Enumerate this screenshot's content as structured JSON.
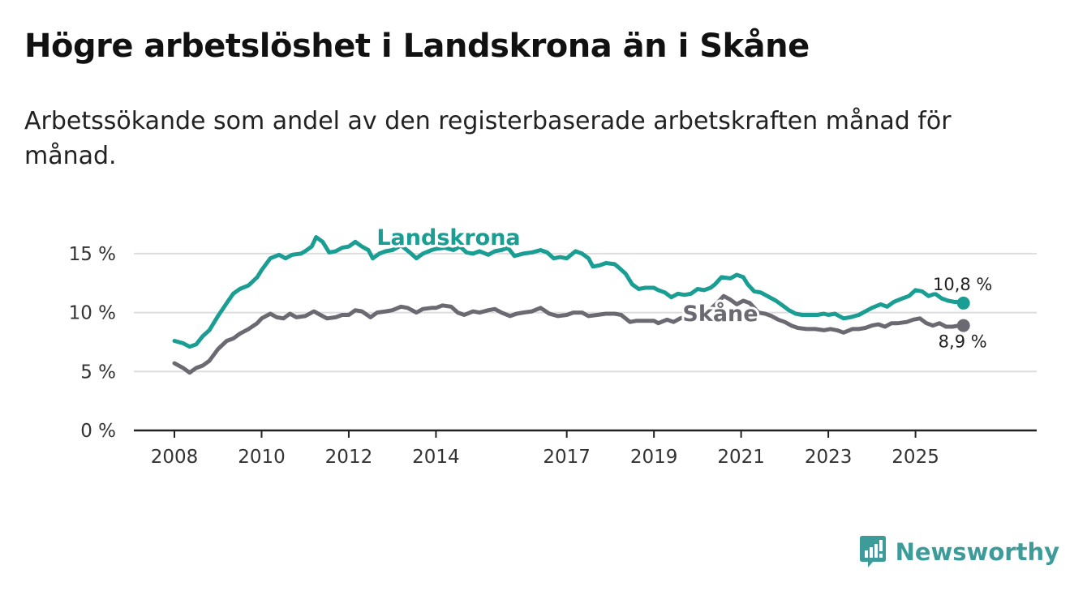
{
  "title": "Högre arbetslöshet i Landskrona än i Skåne",
  "subtitle": "Arbetssökande som andel av den registerbaserade arbetskraften månad för månad.",
  "brand": {
    "name": "Newsworthy",
    "color": "#3d9c9a",
    "icon": "newsworthy-logo-icon"
  },
  "colors": {
    "landskrona": "#1a9e93",
    "skane": "#6b6a72",
    "grid": "#dddddd",
    "axis": "#222222"
  },
  "chart_data": {
    "type": "line",
    "title": "Högre arbetslöshet i Landskrona än i Skåne",
    "xlabel": "",
    "ylabel": "",
    "xlim": [
      2008.0,
      2026.85
    ],
    "ylim": [
      0,
      17
    ],
    "yticks": [
      0,
      5,
      10,
      15
    ],
    "ytick_labels": [
      "0 %",
      "5 %",
      "10 %",
      "15 %"
    ],
    "xticks": [
      2008,
      2010,
      2012,
      2014,
      2017,
      2019,
      2021,
      2023,
      2025
    ],
    "xtick_labels": [
      "2008",
      "2010",
      "2012",
      "2014",
      "2017",
      "2019",
      "2021",
      "2023",
      "2025"
    ],
    "series": [
      {
        "name": "Landskrona",
        "color": "#1a9e93",
        "end_label": "10,8 %",
        "points": [
          [
            2008.0,
            7.6
          ],
          [
            2008.2,
            7.4
          ],
          [
            2008.35,
            7.1
          ],
          [
            2008.5,
            7.3
          ],
          [
            2008.65,
            8.0
          ],
          [
            2008.8,
            8.5
          ],
          [
            2009.0,
            9.7
          ],
          [
            2009.2,
            10.8
          ],
          [
            2009.35,
            11.6
          ],
          [
            2009.5,
            12.0
          ],
          [
            2009.7,
            12.3
          ],
          [
            2009.9,
            13.0
          ],
          [
            2010.0,
            13.6
          ],
          [
            2010.2,
            14.6
          ],
          [
            2010.4,
            14.9
          ],
          [
            2010.55,
            14.6
          ],
          [
            2010.7,
            14.9
          ],
          [
            2010.9,
            15.0
          ],
          [
            2011.0,
            15.2
          ],
          [
            2011.15,
            15.6
          ],
          [
            2011.25,
            16.4
          ],
          [
            2011.4,
            16.0
          ],
          [
            2011.55,
            15.1
          ],
          [
            2011.7,
            15.2
          ],
          [
            2011.85,
            15.5
          ],
          [
            2012.0,
            15.6
          ],
          [
            2012.15,
            16.0
          ],
          [
            2012.3,
            15.6
          ],
          [
            2012.45,
            15.3
          ],
          [
            2012.55,
            14.6
          ],
          [
            2012.7,
            15.0
          ],
          [
            2012.85,
            15.2
          ],
          [
            2013.0,
            15.3
          ],
          [
            2013.2,
            15.7
          ],
          [
            2013.4,
            15.1
          ],
          [
            2013.55,
            14.6
          ],
          [
            2013.7,
            15.0
          ],
          [
            2013.9,
            15.3
          ],
          [
            2014.0,
            15.4
          ],
          [
            2014.2,
            15.5
          ],
          [
            2014.4,
            15.3
          ],
          [
            2014.55,
            15.6
          ],
          [
            2014.7,
            15.1
          ],
          [
            2014.85,
            15.0
          ],
          [
            2015.0,
            15.2
          ],
          [
            2015.2,
            14.9
          ],
          [
            2015.35,
            15.2
          ],
          [
            2015.5,
            15.3
          ],
          [
            2015.65,
            15.5
          ],
          [
            2015.8,
            14.8
          ],
          [
            2016.0,
            15.0
          ],
          [
            2016.2,
            15.1
          ],
          [
            2016.4,
            15.3
          ],
          [
            2016.55,
            15.1
          ],
          [
            2016.7,
            14.6
          ],
          [
            2016.85,
            14.7
          ],
          [
            2017.0,
            14.6
          ],
          [
            2017.2,
            15.2
          ],
          [
            2017.35,
            15.0
          ],
          [
            2017.5,
            14.6
          ],
          [
            2017.6,
            13.9
          ],
          [
            2017.75,
            14.0
          ],
          [
            2017.9,
            14.2
          ],
          [
            2018.1,
            14.1
          ],
          [
            2018.2,
            13.8
          ],
          [
            2018.35,
            13.3
          ],
          [
            2018.5,
            12.4
          ],
          [
            2018.65,
            12.0
          ],
          [
            2018.8,
            12.1
          ],
          [
            2019.0,
            12.1
          ],
          [
            2019.1,
            11.9
          ],
          [
            2019.25,
            11.7
          ],
          [
            2019.4,
            11.3
          ],
          [
            2019.55,
            11.6
          ],
          [
            2019.7,
            11.5
          ],
          [
            2019.85,
            11.6
          ],
          [
            2020.0,
            12.0
          ],
          [
            2020.15,
            11.9
          ],
          [
            2020.3,
            12.1
          ],
          [
            2020.4,
            12.4
          ],
          [
            2020.55,
            13.0
          ],
          [
            2020.75,
            12.9
          ],
          [
            2020.9,
            13.2
          ],
          [
            2021.05,
            13.0
          ],
          [
            2021.15,
            12.4
          ],
          [
            2021.3,
            11.8
          ],
          [
            2021.45,
            11.7
          ],
          [
            2021.6,
            11.4
          ],
          [
            2021.8,
            11.0
          ],
          [
            2021.95,
            10.6
          ],
          [
            2022.1,
            10.2
          ],
          [
            2022.25,
            9.9
          ],
          [
            2022.4,
            9.8
          ],
          [
            2022.6,
            9.8
          ],
          [
            2022.75,
            9.8
          ],
          [
            2022.9,
            9.9
          ],
          [
            2023.0,
            9.8
          ],
          [
            2023.15,
            9.9
          ],
          [
            2023.35,
            9.5
          ],
          [
            2023.5,
            9.6
          ],
          [
            2023.7,
            9.8
          ],
          [
            2023.85,
            10.1
          ],
          [
            2024.0,
            10.4
          ],
          [
            2024.2,
            10.7
          ],
          [
            2024.35,
            10.5
          ],
          [
            2024.5,
            10.9
          ],
          [
            2024.7,
            11.2
          ],
          [
            2024.85,
            11.4
          ],
          [
            2025.0,
            11.9
          ],
          [
            2025.15,
            11.8
          ],
          [
            2025.3,
            11.4
          ],
          [
            2025.45,
            11.6
          ],
          [
            2025.6,
            11.2
          ],
          [
            2025.75,
            11.0
          ],
          [
            2025.9,
            10.9
          ],
          [
            2026.05,
            10.9
          ],
          [
            2026.1,
            10.8
          ]
        ]
      },
      {
        "name": "Skåne",
        "color": "#6b6a72",
        "end_label": "8,9 %",
        "points": [
          [
            2008.0,
            5.7
          ],
          [
            2008.2,
            5.3
          ],
          [
            2008.35,
            4.9
          ],
          [
            2008.5,
            5.3
          ],
          [
            2008.65,
            5.5
          ],
          [
            2008.8,
            5.9
          ],
          [
            2009.0,
            6.9
          ],
          [
            2009.2,
            7.6
          ],
          [
            2009.35,
            7.8
          ],
          [
            2009.5,
            8.2
          ],
          [
            2009.7,
            8.6
          ],
          [
            2009.9,
            9.1
          ],
          [
            2010.0,
            9.5
          ],
          [
            2010.2,
            9.9
          ],
          [
            2010.35,
            9.6
          ],
          [
            2010.5,
            9.5
          ],
          [
            2010.65,
            9.9
          ],
          [
            2010.8,
            9.6
          ],
          [
            2011.0,
            9.7
          ],
          [
            2011.2,
            10.1
          ],
          [
            2011.35,
            9.8
          ],
          [
            2011.5,
            9.5
          ],
          [
            2011.7,
            9.6
          ],
          [
            2011.85,
            9.8
          ],
          [
            2012.0,
            9.8
          ],
          [
            2012.15,
            10.2
          ],
          [
            2012.3,
            10.1
          ],
          [
            2012.5,
            9.6
          ],
          [
            2012.65,
            10.0
          ],
          [
            2012.85,
            10.1
          ],
          [
            2013.0,
            10.2
          ],
          [
            2013.2,
            10.5
          ],
          [
            2013.35,
            10.4
          ],
          [
            2013.55,
            10.0
          ],
          [
            2013.7,
            10.3
          ],
          [
            2013.9,
            10.4
          ],
          [
            2014.0,
            10.4
          ],
          [
            2014.15,
            10.6
          ],
          [
            2014.35,
            10.5
          ],
          [
            2014.5,
            10.0
          ],
          [
            2014.65,
            9.8
          ],
          [
            2014.85,
            10.1
          ],
          [
            2015.0,
            10.0
          ],
          [
            2015.2,
            10.2
          ],
          [
            2015.35,
            10.3
          ],
          [
            2015.5,
            10.0
          ],
          [
            2015.7,
            9.7
          ],
          [
            2015.85,
            9.9
          ],
          [
            2016.0,
            10.0
          ],
          [
            2016.2,
            10.1
          ],
          [
            2016.4,
            10.4
          ],
          [
            2016.6,
            9.9
          ],
          [
            2016.8,
            9.7
          ],
          [
            2017.0,
            9.8
          ],
          [
            2017.15,
            10.0
          ],
          [
            2017.35,
            10.0
          ],
          [
            2017.5,
            9.7
          ],
          [
            2017.7,
            9.8
          ],
          [
            2017.9,
            9.9
          ],
          [
            2018.1,
            9.9
          ],
          [
            2018.25,
            9.8
          ],
          [
            2018.45,
            9.2
          ],
          [
            2018.6,
            9.3
          ],
          [
            2018.8,
            9.3
          ],
          [
            2019.0,
            9.3
          ],
          [
            2019.1,
            9.1
          ],
          [
            2019.3,
            9.4
          ],
          [
            2019.45,
            9.2
          ],
          [
            2019.6,
            9.5
          ],
          [
            2019.8,
            9.7
          ],
          [
            2020.0,
            9.9
          ],
          [
            2020.15,
            9.9
          ],
          [
            2020.3,
            10.3
          ],
          [
            2020.45,
            10.8
          ],
          [
            2020.6,
            11.4
          ],
          [
            2020.75,
            11.1
          ],
          [
            2020.9,
            10.7
          ],
          [
            2021.05,
            11.0
          ],
          [
            2021.2,
            10.8
          ],
          [
            2021.4,
            10.0
          ],
          [
            2021.55,
            9.9
          ],
          [
            2021.7,
            9.7
          ],
          [
            2021.85,
            9.4
          ],
          [
            2022.0,
            9.2
          ],
          [
            2022.15,
            8.9
          ],
          [
            2022.3,
            8.7
          ],
          [
            2022.5,
            8.6
          ],
          [
            2022.7,
            8.6
          ],
          [
            2022.9,
            8.5
          ],
          [
            2023.05,
            8.6
          ],
          [
            2023.2,
            8.5
          ],
          [
            2023.35,
            8.3
          ],
          [
            2023.55,
            8.6
          ],
          [
            2023.7,
            8.6
          ],
          [
            2023.85,
            8.7
          ],
          [
            2024.0,
            8.9
          ],
          [
            2024.15,
            9.0
          ],
          [
            2024.3,
            8.8
          ],
          [
            2024.45,
            9.1
          ],
          [
            2024.6,
            9.1
          ],
          [
            2024.8,
            9.2
          ],
          [
            2024.95,
            9.4
          ],
          [
            2025.1,
            9.5
          ],
          [
            2025.25,
            9.1
          ],
          [
            2025.4,
            8.9
          ],
          [
            2025.55,
            9.1
          ],
          [
            2025.7,
            8.8
          ],
          [
            2025.85,
            8.8
          ],
          [
            2026.0,
            8.9
          ],
          [
            2026.1,
            8.9
          ]
        ]
      }
    ]
  }
}
